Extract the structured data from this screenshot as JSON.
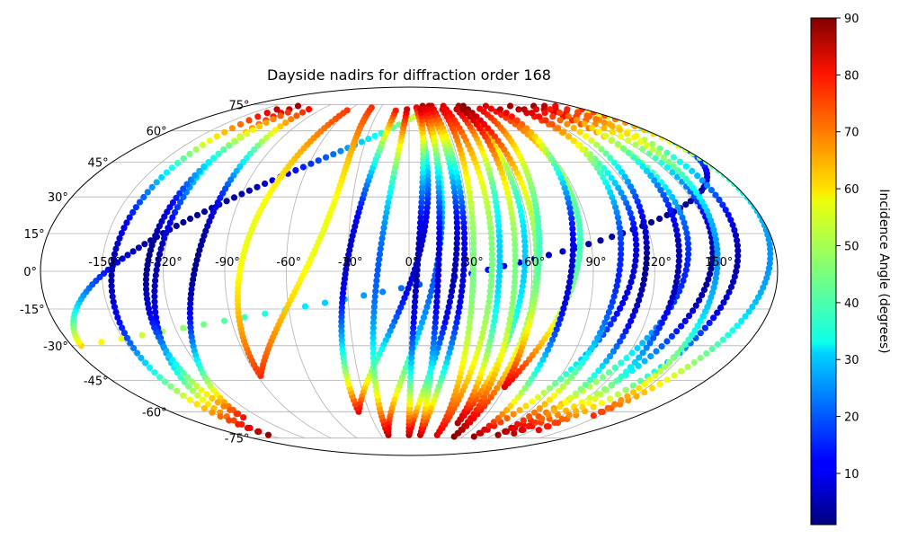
{
  "chart_data": {
    "type": "scatter",
    "projection": "mollweide",
    "title": "Dayside nadirs for diffraction order 168",
    "xlabel": "",
    "ylabel": "",
    "grid": true,
    "lon_tick_labels": [
      "-150°",
      "-120°",
      "-90°",
      "-60°",
      "-30°",
      "0°",
      "30°",
      "60°",
      "90°",
      "120°",
      "150°"
    ],
    "lat_tick_labels": [
      "75°",
      "60°",
      "45°",
      "30°",
      "15°",
      "0°",
      "-15°",
      "-30°",
      "-45°",
      "-60°",
      "-75°"
    ],
    "colorbar": {
      "label": "Incidence Angle (degrees)",
      "range": [
        1,
        90
      ],
      "ticks": [
        "10",
        "20",
        "30",
        "40",
        "50",
        "60",
        "70",
        "80",
        "90"
      ],
      "colormap": "jet"
    },
    "marker_color_by": "incidence_angle",
    "tracks": [
      {
        "lon_asc": -175,
        "lon_desc": 175,
        "inc_max": 60,
        "inc_min": 2,
        "lat_min": -30,
        "lat_max": 72
      },
      {
        "lon_asc": -150,
        "lon_desc": -123,
        "inc_max": 88,
        "inc_min": 5,
        "lat_min": -73,
        "lat_max": 74
      },
      {
        "lon_asc": -133,
        "lon_desc": -103,
        "inc_max": 78,
        "inc_min": 2,
        "lat_min": -63,
        "lat_max": 72
      },
      {
        "lon_asc": -88,
        "lon_desc": -40,
        "inc_max": 75,
        "inc_min": 55,
        "lat_min": -43,
        "lat_max": 73
      },
      {
        "lon_asc": -38,
        "lon_desc": 8,
        "inc_max": 80,
        "inc_min": 7,
        "lat_min": -60,
        "lat_max": 73
      },
      {
        "lon_asc": -22,
        "lon_desc": 15,
        "inc_max": 85,
        "inc_min": 20,
        "lat_min": -73,
        "lat_max": 74
      },
      {
        "lon_asc": 0,
        "lon_desc": 22,
        "inc_max": 86,
        "inc_min": 5,
        "lat_min": -73,
        "lat_max": 74
      },
      {
        "lon_asc": 12,
        "lon_desc": 25,
        "inc_max": 84,
        "inc_min": 8,
        "lat_min": -73,
        "lat_max": 74
      },
      {
        "lon_asc": 30,
        "lon_desc": 38,
        "inc_max": 82,
        "inc_min": 45,
        "lat_min": -73,
        "lat_max": 74
      },
      {
        "lon_asc": 42,
        "lon_desc": 55,
        "inc_max": 86,
        "inc_min": 30,
        "lat_min": -66,
        "lat_max": 74
      },
      {
        "lon_asc": 50,
        "lon_desc": 60,
        "inc_max": 90,
        "inc_min": 45,
        "lat_min": -74,
        "lat_max": 74
      },
      {
        "lon_asc": 60,
        "lon_desc": 85,
        "inc_max": 82,
        "inc_min": 40,
        "lat_min": -48,
        "lat_max": 74
      },
      {
        "lon_asc": 72,
        "lon_desc": 112,
        "inc_max": 88,
        "inc_min": 8,
        "lat_min": -74,
        "lat_max": 74
      },
      {
        "lon_asc": 95,
        "lon_desc": 138,
        "inc_max": 88,
        "inc_min": 15,
        "lat_min": -73,
        "lat_max": 74
      },
      {
        "lon_asc": 108,
        "lon_desc": 150,
        "inc_max": 85,
        "inc_min": 3,
        "lat_min": -72,
        "lat_max": 74
      },
      {
        "lon_asc": 125,
        "lon_desc": 162,
        "inc_max": 80,
        "inc_min": 5,
        "lat_min": -70,
        "lat_max": 74
      },
      {
        "lon_asc": 145,
        "lon_desc": 178,
        "inc_max": 75,
        "inc_min": 25,
        "lat_min": -62,
        "lat_max": 72
      }
    ]
  }
}
